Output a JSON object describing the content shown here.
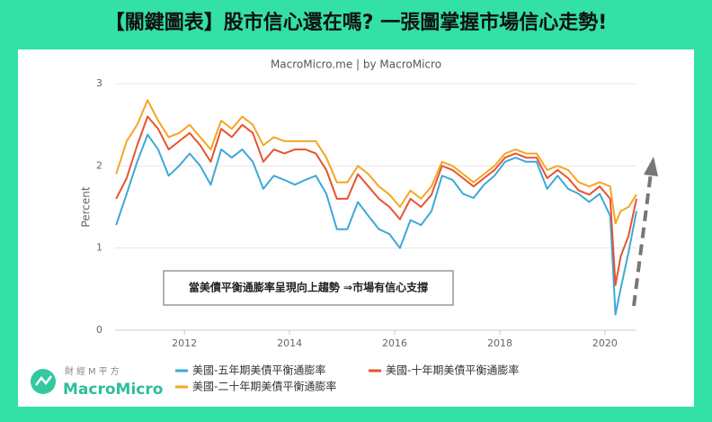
{
  "chart_data": {
    "type": "line",
    "title": "【關鍵圖表】股市信心還在嗎? 一張圖掌握市場信心走勢!",
    "subtitle": "MacroMicro.me | by MacroMicro",
    "y_label": "Percent",
    "annotation": "當美債平衡通膨率呈現向上趨勢 ⇒市場有信心支撐",
    "x": [
      2010.7,
      2010.9,
      2011.1,
      2011.3,
      2011.5,
      2011.7,
      2011.9,
      2012.1,
      2012.3,
      2012.5,
      2012.7,
      2012.9,
      2013.1,
      2013.3,
      2013.5,
      2013.7,
      2013.9,
      2014.1,
      2014.3,
      2014.5,
      2014.7,
      2014.9,
      2015.1,
      2015.3,
      2015.5,
      2015.7,
      2015.9,
      2016.1,
      2016.3,
      2016.5,
      2016.7,
      2016.9,
      2017.1,
      2017.3,
      2017.5,
      2017.7,
      2017.9,
      2018.1,
      2018.3,
      2018.5,
      2018.7,
      2018.9,
      2019.1,
      2019.3,
      2019.5,
      2019.7,
      2019.9,
      2020.1,
      2020.2,
      2020.3,
      2020.45,
      2020.6
    ],
    "series": [
      {
        "name": "美國-五年期美債平衡通膨率",
        "color": "#3ea8d8",
        "values": [
          1.28,
          1.66,
          2.05,
          2.38,
          2.2,
          1.88,
          2.0,
          2.15,
          2.0,
          1.77,
          2.2,
          2.1,
          2.2,
          2.05,
          1.72,
          1.88,
          1.83,
          1.77,
          1.83,
          1.88,
          1.66,
          1.23,
          1.23,
          1.56,
          1.39,
          1.23,
          1.17,
          1.0,
          1.34,
          1.28,
          1.45,
          1.88,
          1.83,
          1.66,
          1.61,
          1.77,
          1.88,
          2.05,
          2.1,
          2.05,
          2.05,
          1.72,
          1.88,
          1.72,
          1.66,
          1.56,
          1.66,
          1.39,
          0.19,
          0.51,
          0.95,
          1.45
        ]
      },
      {
        "name": "美國-十年期美債平衡通膨率",
        "color": "#e8532f",
        "values": [
          1.6,
          1.85,
          2.25,
          2.6,
          2.45,
          2.2,
          2.3,
          2.4,
          2.25,
          2.05,
          2.45,
          2.35,
          2.5,
          2.4,
          2.05,
          2.2,
          2.15,
          2.2,
          2.2,
          2.15,
          1.95,
          1.6,
          1.6,
          1.9,
          1.75,
          1.6,
          1.5,
          1.35,
          1.6,
          1.5,
          1.65,
          2.0,
          1.95,
          1.85,
          1.75,
          1.85,
          1.95,
          2.1,
          2.15,
          2.1,
          2.1,
          1.85,
          1.95,
          1.85,
          1.7,
          1.65,
          1.75,
          1.6,
          0.55,
          0.9,
          1.15,
          1.6
        ]
      },
      {
        "name": "美國-二十年期美債平衡通膨率",
        "color": "#f5a623",
        "values": [
          1.9,
          2.3,
          2.5,
          2.8,
          2.55,
          2.35,
          2.4,
          2.5,
          2.35,
          2.2,
          2.55,
          2.45,
          2.6,
          2.5,
          2.25,
          2.35,
          2.3,
          2.3,
          2.3,
          2.3,
          2.1,
          1.8,
          1.8,
          2.0,
          1.9,
          1.75,
          1.65,
          1.5,
          1.7,
          1.6,
          1.75,
          2.05,
          2.0,
          1.9,
          1.8,
          1.9,
          2.0,
          2.15,
          2.2,
          2.15,
          2.15,
          1.95,
          2.0,
          1.95,
          1.8,
          1.75,
          1.8,
          1.75,
          1.3,
          1.45,
          1.5,
          1.65
        ]
      }
    ],
    "xlim": [
      2010.68,
      2020.6
    ],
    "xticks": [
      2012,
      2014,
      2016,
      2018,
      2020
    ],
    "ylim": [
      0,
      3
    ],
    "yticks": [
      0,
      1,
      2,
      3
    ],
    "grid": true
  },
  "logo": {
    "tagline": "財經M平方",
    "name": "MacroMicro"
  }
}
